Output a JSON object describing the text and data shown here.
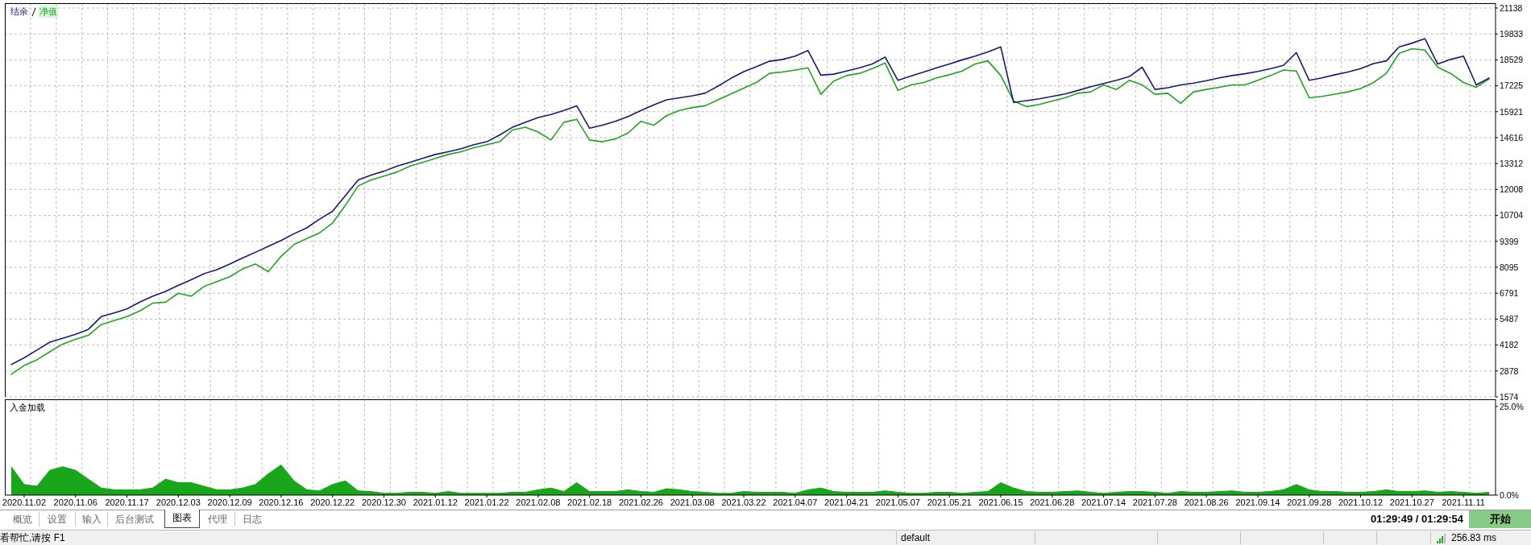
{
  "chart_data": [
    {
      "type": "line",
      "legend": "top left",
      "tick_labels": "y",
      "grid": true,
      "ylim": [
        1574,
        21380
      ],
      "yticks": [
        1574,
        2878,
        4182,
        5487,
        6791,
        8095,
        9399,
        10704,
        12008,
        13312,
        14616,
        15921,
        17225,
        18529,
        19833,
        21138
      ],
      "categories": [
        null,
        "2020.11.02",
        null,
        null,
        null,
        "2020.11.06",
        null,
        null,
        null,
        "2020.11.17",
        null,
        null,
        null,
        "2020.12.03",
        null,
        null,
        null,
        "2020.12.09",
        null,
        null,
        null,
        "2020.12.16",
        null,
        null,
        null,
        "2020.12.22",
        null,
        null,
        null,
        "2020.12.30",
        null,
        null,
        null,
        "2021.01.12",
        null,
        null,
        null,
        "2021.01.22",
        null,
        null,
        null,
        "2021.02.08",
        null,
        null,
        null,
        "2021.02.18",
        null,
        null,
        null,
        "2021.02.26",
        null,
        null,
        null,
        "2021.03.08",
        null,
        null,
        null,
        "2021.03.22",
        null,
        null,
        null,
        "2021.04.07",
        null,
        null,
        null,
        "2021.04.21",
        null,
        null,
        null,
        "2021.05.07",
        null,
        null,
        null,
        "2021.05.21",
        null,
        null,
        null,
        "2021.06.15",
        null,
        null,
        null,
        "2021.06.28",
        null,
        null,
        null,
        "2021.07.14",
        null,
        null,
        null,
        "2021.07.28",
        null,
        null,
        null,
        "2021.08.26",
        null,
        null,
        null,
        "2021.09.14",
        null,
        null,
        null,
        "2021.09.28",
        null,
        null,
        null,
        "2021.10.12",
        null,
        null,
        null,
        "2021.10.27",
        null,
        null,
        null,
        "2021.11.11",
        null,
        null
      ],
      "series": [
        {
          "name": "结余",
          "color": "#191970",
          "values": [
            3200,
            3540,
            3930,
            4330,
            4520,
            4720,
            4970,
            5610,
            5800,
            6000,
            6340,
            6640,
            6880,
            7180,
            7470,
            7770,
            7970,
            8260,
            8560,
            8850,
            9150,
            9440,
            9780,
            10080,
            10520,
            10910,
            11700,
            12490,
            12730,
            12930,
            13180,
            13370,
            13570,
            13770,
            13910,
            14060,
            14260,
            14410,
            14750,
            15140,
            15390,
            15630,
            15780,
            15980,
            16220,
            15090,
            15240,
            15440,
            15680,
            15980,
            16270,
            16520,
            16620,
            16720,
            16860,
            17210,
            17600,
            17940,
            18190,
            18460,
            18550,
            18720,
            19000,
            17760,
            17810,
            17970,
            18130,
            18320,
            18670,
            17500,
            17710,
            17920,
            18130,
            18320,
            18530,
            18720,
            18930,
            19180,
            16390,
            16480,
            16570,
            16690,
            16810,
            16990,
            17180,
            17340,
            17500,
            17690,
            18160,
            17040,
            17130,
            17270,
            17360,
            17480,
            17620,
            17740,
            17830,
            17950,
            18090,
            18250,
            18900,
            17500,
            17620,
            17780,
            17920,
            18090,
            18340,
            18480,
            19180,
            19370,
            19600,
            18320,
            18550,
            18720,
            17270,
            17620
          ]
        },
        {
          "name": "净值",
          "color": "#22a322",
          "values": [
            2710,
            3150,
            3440,
            3840,
            4230,
            4470,
            4670,
            5210,
            5410,
            5610,
            5900,
            6290,
            6340,
            6790,
            6640,
            7130,
            7380,
            7620,
            8010,
            8260,
            7870,
            8650,
            9240,
            9540,
            9830,
            10320,
            11210,
            12190,
            12490,
            12680,
            12880,
            13180,
            13370,
            13570,
            13770,
            13910,
            14110,
            14260,
            14410,
            15000,
            15140,
            14900,
            14500,
            15390,
            15540,
            14500,
            14410,
            14550,
            14850,
            15440,
            15240,
            15730,
            15980,
            16130,
            16220,
            16520,
            16810,
            17110,
            17400,
            17850,
            17920,
            18020,
            18130,
            16800,
            17460,
            17740,
            17850,
            18090,
            18370,
            16990,
            17270,
            17390,
            17620,
            17780,
            17970,
            18320,
            18480,
            17740,
            16460,
            16180,
            16290,
            16460,
            16620,
            16850,
            16920,
            17270,
            17040,
            17500,
            17270,
            16800,
            16850,
            16340,
            16920,
            17040,
            17150,
            17270,
            17270,
            17500,
            17740,
            18020,
            17970,
            16620,
            16690,
            16800,
            16920,
            17090,
            17390,
            17850,
            18860,
            19090,
            19020,
            18160,
            17850,
            17390,
            17150,
            17570
          ]
        }
      ]
    },
    {
      "type": "area",
      "title": "入金加载",
      "grid": "x",
      "ylim": [
        0,
        27
      ],
      "yticks": [
        {
          "value": 0,
          "label": "0.0%"
        },
        {
          "value": 25,
          "label": "25.0%"
        }
      ],
      "color": "#1aa61a",
      "categories": [
        null,
        "2020.11.02",
        null,
        null,
        null,
        "2020.11.06",
        null,
        null,
        null,
        "2020.11.17",
        null,
        null,
        null,
        "2020.12.03",
        null,
        null,
        null,
        "2020.12.09",
        null,
        null,
        null,
        "2020.12.16",
        null,
        null,
        null,
        "2020.12.22",
        null,
        null,
        null,
        "2020.12.30",
        null,
        null,
        null,
        "2021.01.12",
        null,
        null,
        null,
        "2021.01.22",
        null,
        null,
        null,
        "2021.02.08",
        null,
        null,
        null,
        "2021.02.18",
        null,
        null,
        null,
        "2021.02.26",
        null,
        null,
        null,
        "2021.03.08",
        null,
        null,
        null,
        "2021.03.22",
        null,
        null,
        null,
        "2021.04.07",
        null,
        null,
        null,
        "2021.04.21",
        null,
        null,
        null,
        "2021.05.07",
        null,
        null,
        null,
        "2021.05.21",
        null,
        null,
        null,
        "2021.06.15",
        null,
        null,
        null,
        "2021.06.28",
        null,
        null,
        null,
        "2021.07.14",
        null,
        null,
        null,
        "2021.07.28",
        null,
        null,
        null,
        "2021.08.26",
        null,
        null,
        null,
        "2021.09.14",
        null,
        null,
        null,
        "2021.09.28",
        null,
        null,
        null,
        "2021.10.12",
        null,
        null,
        null,
        "2021.10.27",
        null,
        null,
        null,
        "2021.11.11",
        null,
        null
      ],
      "values": [
        8,
        3,
        2.5,
        7,
        8,
        7,
        4.5,
        2,
        1.5,
        1.5,
        1.5,
        2,
        4.5,
        3.5,
        3.5,
        2.5,
        1.5,
        1.5,
        2,
        3,
        6,
        8.5,
        4,
        1.5,
        1.2,
        3,
        4,
        1.2,
        1,
        0.5,
        0.5,
        0.8,
        0.8,
        0.5,
        1,
        0.5,
        0.5,
        0.5,
        0.5,
        0.8,
        0.8,
        1.5,
        2,
        1,
        3.5,
        1,
        1,
        1,
        1.5,
        1,
        0.8,
        1.8,
        1.5,
        1,
        0.8,
        0.5,
        0.5,
        1,
        0.8,
        0.8,
        0.8,
        0.5,
        1.5,
        2,
        1,
        0.8,
        0.8,
        0.8,
        1.2,
        0.8,
        0.5,
        0.5,
        0.8,
        0.8,
        0.5,
        0.8,
        1,
        3.5,
        2,
        1,
        0.8,
        0.8,
        1,
        1.2,
        0.8,
        0.5,
        0.8,
        1,
        1,
        0.8,
        0.5,
        1,
        0.8,
        0.8,
        1,
        1.2,
        0.8,
        0.8,
        1,
        1.5,
        3,
        1.5,
        1,
        1,
        0.8,
        0.8,
        1,
        1.5,
        1,
        1,
        1.2,
        0.8,
        1,
        0.8,
        0.5,
        0.8
      ]
    },
    {
      "type": "other",
      "annotations": [
        "概览",
        "设置",
        "输入",
        "后台测试",
        "图表",
        "代理",
        "日志",
        "01:29:49 / 01:29:54",
        "开始",
        "看帮忙,请按 F1",
        "default",
        "256.83 ms"
      ]
    }
  ]
}
